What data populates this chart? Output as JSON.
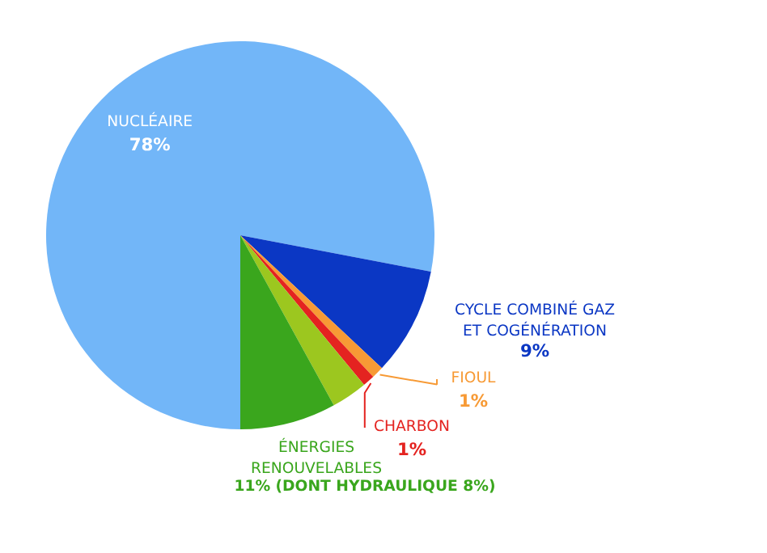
{
  "chart_data": {
    "type": "pie",
    "categories": [
      "NUCLÉAIRE",
      "CYCLE COMBINÉ GAZ ET COGÉNÉRATION",
      "FIOUL",
      "CHARBON",
      null,
      "ÉNERGIES RENOUVELABLES"
    ],
    "values": [
      78,
      9,
      1,
      1,
      3,
      8
    ],
    "colors": [
      "#72b6f8",
      "#0b37c4",
      "#f79a35",
      "#e42320",
      "#9cc71f",
      "#3aa61d"
    ],
    "value_labels": [
      "78%",
      "9%",
      "1%",
      "1%",
      null,
      "11% (DONT HYDRAULIQUE 8%)"
    ]
  }
}
